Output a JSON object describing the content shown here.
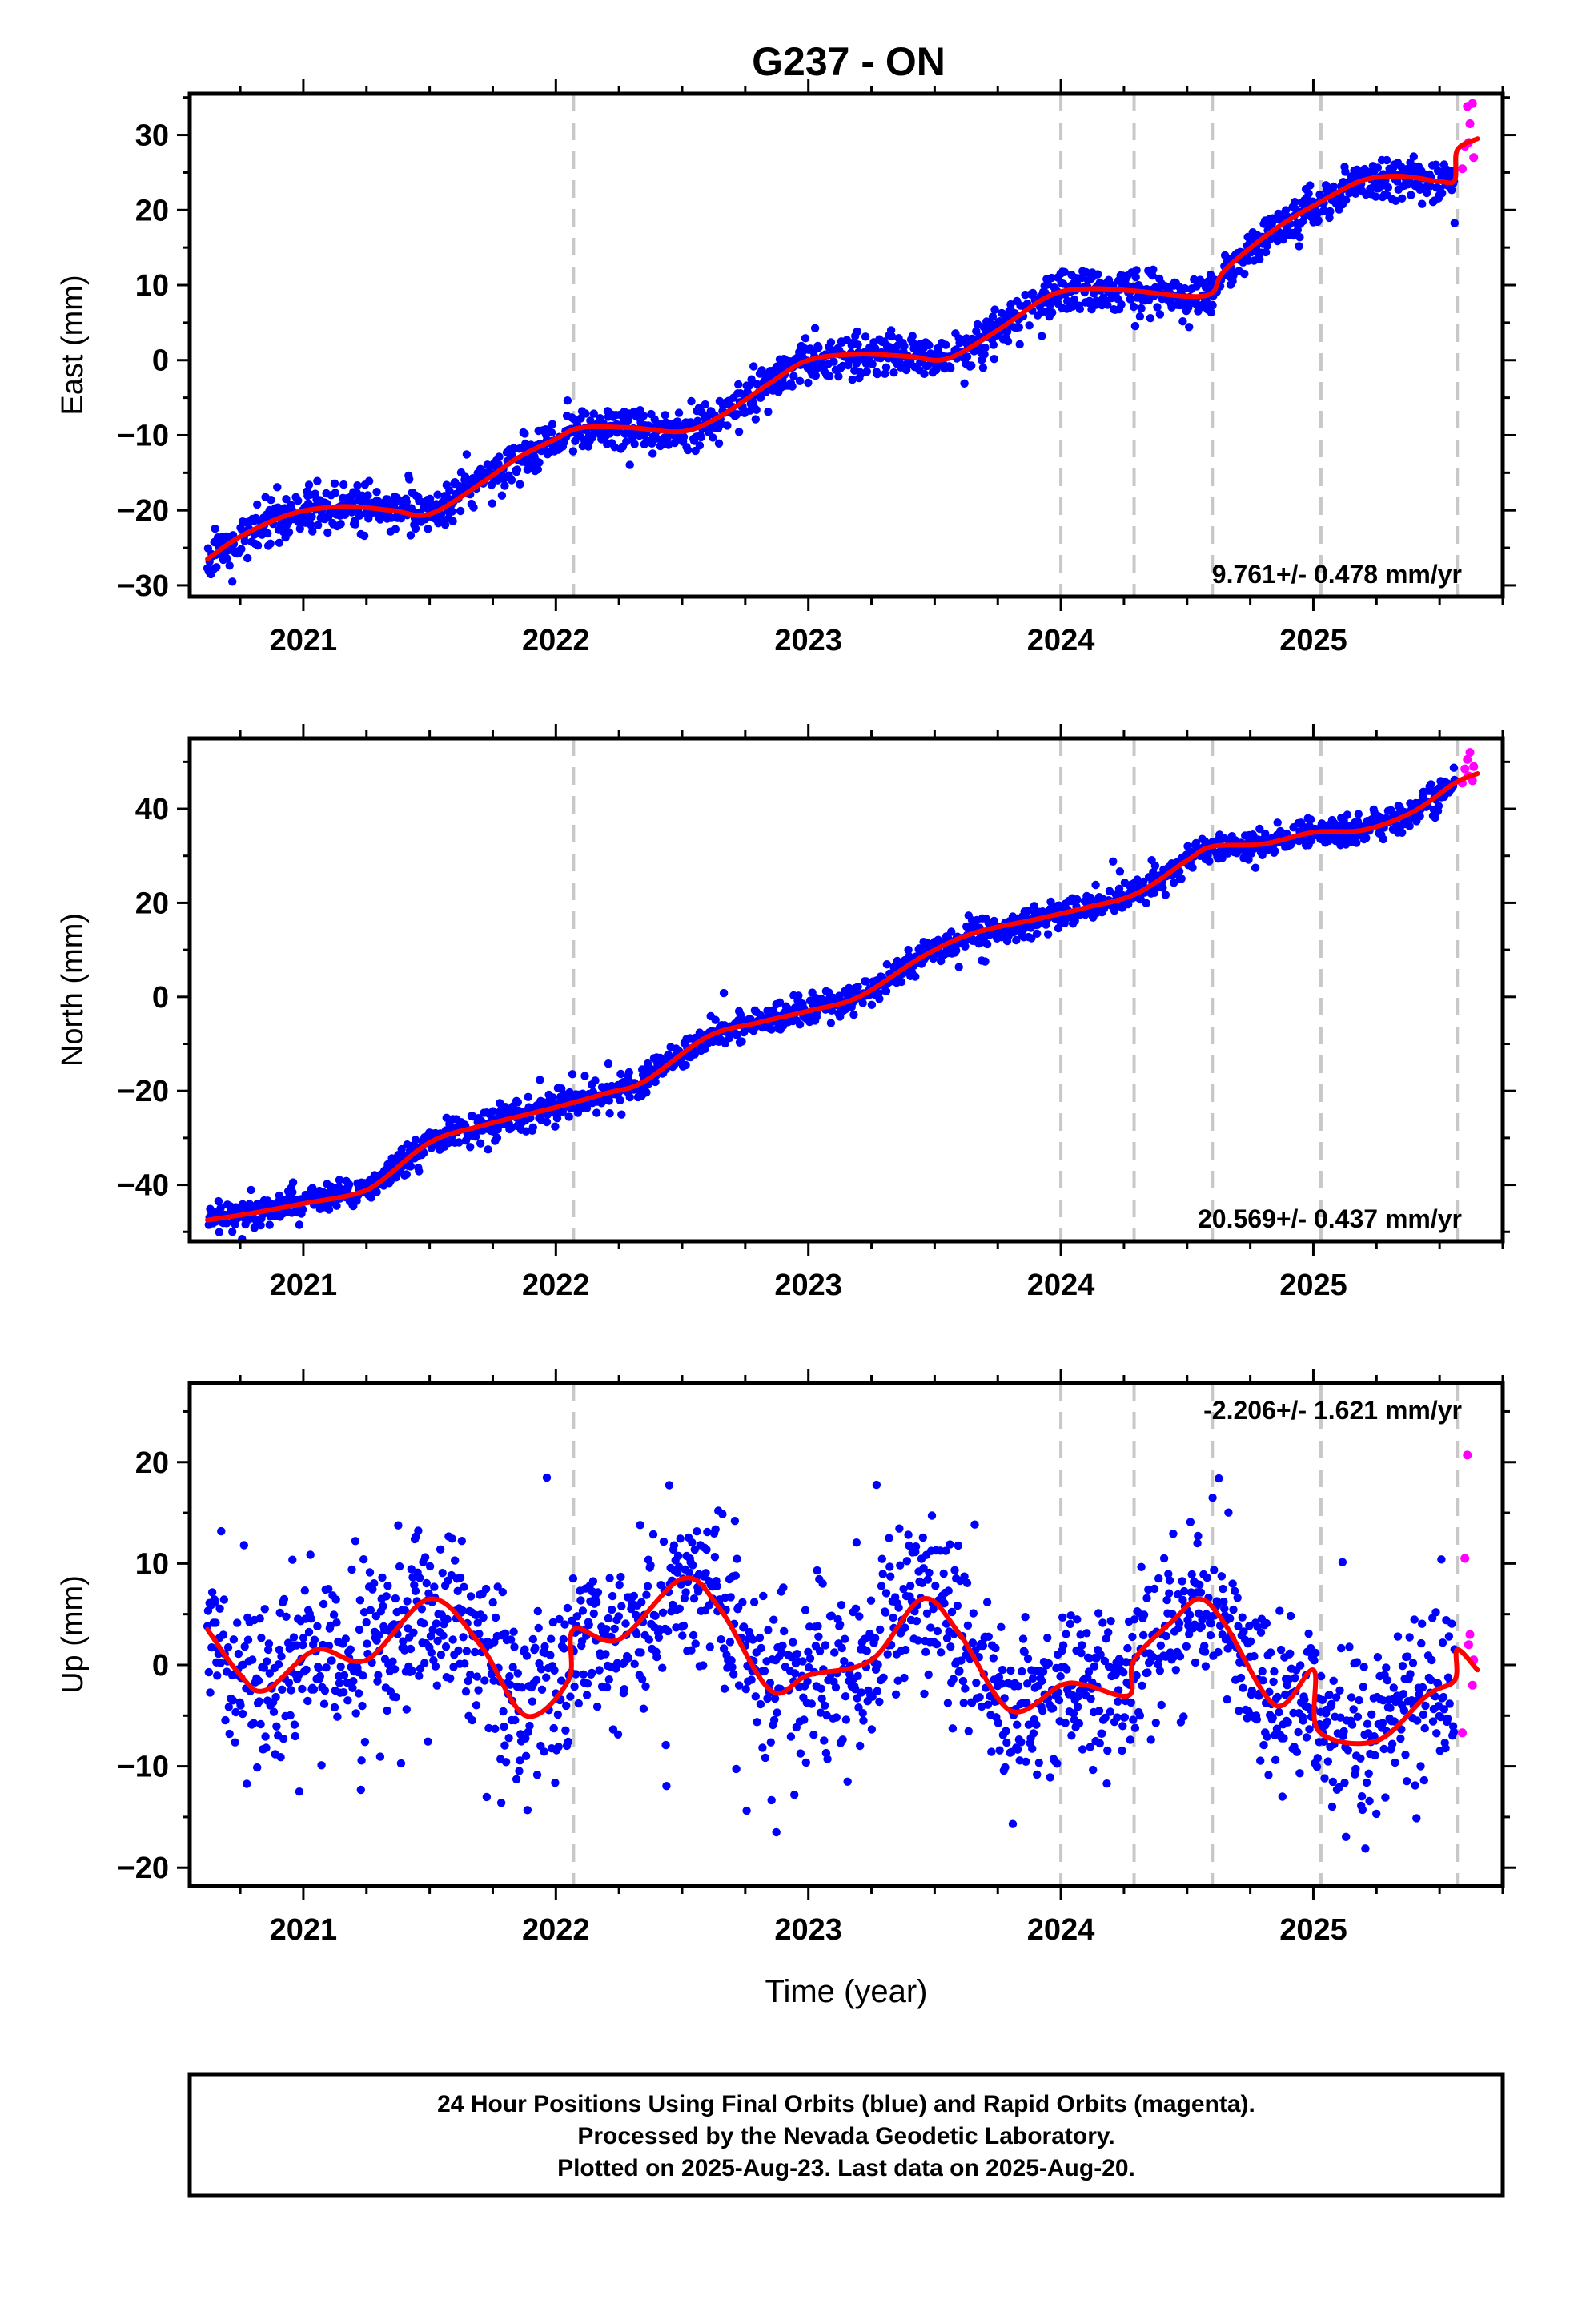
{
  "title": "G237 - ON",
  "chart_data": [
    {
      "type": "scatter",
      "ylabel": "East (mm)",
      "xlabel": "",
      "xlim": [
        2020.55,
        2025.75
      ],
      "ylim": [
        -31.5,
        35.5
      ],
      "x_ticks": [
        2021,
        2022,
        2023,
        2024,
        2025
      ],
      "y_ticks": [
        -30,
        -20,
        -10,
        0,
        10,
        20,
        30
      ],
      "grid": false,
      "rate_text": "9.761+/- 0.478 mm/yr",
      "rate_position": "bottom-right",
      "series": [
        {
          "role": "final_orbits",
          "color": "#0000ff",
          "seed": 11,
          "scatter_sd": 1.4,
          "trend_x": [
            2020.62,
            2020.75,
            2020.95,
            2021.15,
            2021.35,
            2021.5,
            2021.7,
            2021.85,
            2022.0,
            2022.1,
            2022.3,
            2022.5,
            2022.65,
            2022.85,
            2023.0,
            2023.2,
            2023.4,
            2023.55,
            2023.75,
            2023.95,
            2024.1,
            2024.3,
            2024.5,
            2024.6,
            2024.65,
            2024.85,
            2025.05,
            2025.2,
            2025.35,
            2025.5,
            2025.56
          ],
          "trend_y": [
            -26.5,
            -23.5,
            -20.5,
            -19.5,
            -20.0,
            -20.5,
            -16.5,
            -13.0,
            -10.5,
            -9.0,
            -9.0,
            -9.5,
            -7.5,
            -3.0,
            0.0,
            0.8,
            0.5,
            0.2,
            4.0,
            8.5,
            9.5,
            9.2,
            8.5,
            9.0,
            12.0,
            17.5,
            21.5,
            24.0,
            24.5,
            23.8,
            24.0
          ]
        },
        {
          "role": "rapid_orbits",
          "color": "#ff00ff",
          "x": [
            2025.59,
            2025.6,
            2025.61,
            2025.615,
            2025.62,
            2025.63,
            2025.635
          ],
          "y": [
            25.5,
            28.5,
            33.8,
            29.0,
            31.5,
            34.2,
            27.0
          ]
        },
        {
          "role": "model",
          "color": "#ff0000",
          "x": [
            2020.62,
            2020.75,
            2020.95,
            2021.15,
            2021.35,
            2021.5,
            2021.7,
            2021.85,
            2022.0,
            2022.1,
            2022.3,
            2022.5,
            2022.65,
            2022.85,
            2023.0,
            2023.2,
            2023.4,
            2023.55,
            2023.75,
            2023.95,
            2024.1,
            2024.3,
            2024.5,
            2024.6,
            2024.65,
            2024.85,
            2025.05,
            2025.2,
            2025.35,
            2025.5,
            2025.56,
            2025.57,
            2025.65
          ],
          "y": [
            -26.5,
            -23.5,
            -20.5,
            -19.5,
            -20.0,
            -20.5,
            -16.5,
            -13.0,
            -10.5,
            -9.0,
            -9.0,
            -9.5,
            -7.5,
            -3.0,
            0.0,
            0.8,
            0.5,
            0.2,
            4.0,
            8.5,
            9.5,
            9.2,
            8.5,
            9.0,
            12.0,
            17.5,
            21.5,
            24.0,
            24.5,
            23.8,
            24.0,
            28.0,
            29.5
          ]
        }
      ],
      "steps": [
        2022.07,
        2024.0,
        2024.29,
        2024.6,
        2025.03,
        2025.57
      ]
    },
    {
      "type": "scatter",
      "ylabel": "North (mm)",
      "xlabel": "",
      "xlim": [
        2020.55,
        2025.75
      ],
      "ylim": [
        -52,
        55
      ],
      "x_ticks": [
        2021,
        2022,
        2023,
        2024,
        2025
      ],
      "y_ticks": [
        -40,
        -20,
        0,
        20,
        40
      ],
      "grid": false,
      "rate_text": "20.569+/- 0.437 mm/yr",
      "rate_position": "bottom-right",
      "series": [
        {
          "role": "final_orbits",
          "color": "#0000ff",
          "seed": 23,
          "scatter_sd": 1.5,
          "trend_x": [
            2020.62,
            2020.8,
            2021.0,
            2021.2,
            2021.3,
            2021.5,
            2021.7,
            2022.0,
            2022.2,
            2022.35,
            2022.6,
            2022.8,
            2023.0,
            2023.2,
            2023.45,
            2023.65,
            2023.9,
            2024.1,
            2024.3,
            2024.5,
            2024.6,
            2024.8,
            2025.0,
            2025.2,
            2025.4,
            2025.56
          ],
          "trend_y": [
            -47.5,
            -46.0,
            -44.0,
            -42.0,
            -39.5,
            -31.0,
            -27.5,
            -23.5,
            -20.5,
            -18.0,
            -8.5,
            -5.5,
            -3.0,
            0.0,
            8.5,
            13.5,
            16.5,
            19.0,
            22.0,
            29.0,
            32.0,
            32.5,
            35.0,
            35.5,
            39.5,
            45.5
          ]
        },
        {
          "role": "rapid_orbits",
          "color": "#ff00ff",
          "x": [
            2025.59,
            2025.6,
            2025.61,
            2025.615,
            2025.62,
            2025.63,
            2025.635
          ],
          "y": [
            45.5,
            48.5,
            50.5,
            47.0,
            52.0,
            46.0,
            49.0
          ]
        },
        {
          "role": "model",
          "color": "#ff0000",
          "x": [
            2020.62,
            2020.8,
            2021.0,
            2021.2,
            2021.3,
            2021.5,
            2021.7,
            2022.0,
            2022.2,
            2022.35,
            2022.6,
            2022.8,
            2023.0,
            2023.2,
            2023.45,
            2023.65,
            2023.9,
            2024.1,
            2024.3,
            2024.5,
            2024.6,
            2024.8,
            2025.0,
            2025.2,
            2025.4,
            2025.56,
            2025.65
          ],
          "y": [
            -47.5,
            -46.0,
            -44.0,
            -42.0,
            -39.5,
            -31.0,
            -27.5,
            -23.5,
            -20.5,
            -18.0,
            -8.5,
            -5.5,
            -3.0,
            0.0,
            8.5,
            13.5,
            16.5,
            19.0,
            22.0,
            29.0,
            32.0,
            32.5,
            35.0,
            35.5,
            39.5,
            45.5,
            47.5
          ]
        }
      ],
      "steps": [
        2022.07,
        2024.0,
        2024.29,
        2024.6,
        2025.03,
        2025.57
      ]
    },
    {
      "type": "scatter",
      "ylabel": "Up (mm)",
      "xlabel": "Time (year)",
      "xlim": [
        2020.55,
        2025.75
      ],
      "ylim": [
        -21.8,
        27.8
      ],
      "x_ticks": [
        2021,
        2022,
        2023,
        2024,
        2025
      ],
      "y_ticks": [
        -20,
        -10,
        0,
        10,
        20
      ],
      "grid": false,
      "rate_text": "-2.206+/- 1.621 mm/yr",
      "rate_position": "top-right",
      "series": [
        {
          "role": "final_orbits",
          "color": "#0000ff",
          "seed": 37,
          "scatter_sd": 4.2,
          "trend_x": [
            2020.62,
            2020.75,
            2020.85,
            2021.05,
            2021.25,
            2021.5,
            2021.7,
            2021.88,
            2022.05,
            2022.07,
            2022.25,
            2022.5,
            2022.65,
            2022.85,
            2023.0,
            2023.25,
            2023.45,
            2023.6,
            2023.8,
            2024.0,
            2024.1,
            2024.27,
            2024.29,
            2024.45,
            2024.55,
            2024.65,
            2024.85,
            2025.0,
            2025.02,
            2025.25,
            2025.45,
            2025.56
          ],
          "trend_y": [
            3.5,
            -1.0,
            -2.5,
            1.5,
            0.5,
            6.5,
            2.0,
            -5.0,
            -1.5,
            3.5,
            2.5,
            8.5,
            5.5,
            -2.5,
            -1.0,
            0.5,
            6.5,
            3.0,
            -4.5,
            -2.0,
            -2.0,
            -3.0,
            0.5,
            4.5,
            6.5,
            4.0,
            -4.0,
            -0.5,
            -6.5,
            -7.5,
            -3.0,
            -1.5
          ]
        },
        {
          "role": "rapid_orbits",
          "color": "#ff00ff",
          "x": [
            2025.59,
            2025.6,
            2025.61,
            2025.615,
            2025.62,
            2025.63,
            2025.635
          ],
          "y": [
            -6.7,
            10.5,
            20.7,
            2.0,
            3.0,
            -2.0,
            0.5
          ]
        },
        {
          "role": "model",
          "color": "#ff0000",
          "x": [
            2020.62,
            2020.75,
            2020.85,
            2021.05,
            2021.25,
            2021.5,
            2021.7,
            2021.88,
            2022.05,
            2022.07,
            2022.25,
            2022.5,
            2022.65,
            2022.85,
            2023.0,
            2023.25,
            2023.45,
            2023.6,
            2023.8,
            2024.0,
            2024.1,
            2024.27,
            2024.29,
            2024.45,
            2024.55,
            2024.65,
            2024.85,
            2025.0,
            2025.02,
            2025.25,
            2025.45,
            2025.56,
            2025.57,
            2025.65
          ],
          "y": [
            3.5,
            -1.0,
            -2.5,
            1.5,
            0.5,
            6.5,
            2.0,
            -5.0,
            -1.5,
            3.5,
            2.5,
            8.5,
            5.5,
            -2.5,
            -1.0,
            0.5,
            6.5,
            3.0,
            -4.5,
            -2.0,
            -2.0,
            -3.0,
            0.5,
            4.5,
            6.5,
            4.0,
            -4.0,
            -0.5,
            -6.5,
            -7.5,
            -3.0,
            -1.5,
            1.5,
            -0.5
          ]
        }
      ],
      "steps": [
        2022.07,
        2024.0,
        2024.29,
        2024.6,
        2025.03,
        2025.57
      ]
    }
  ],
  "footer": {
    "line1": "24 Hour Positions Using Final Orbits (blue) and Rapid Orbits (magenta).",
    "line2": "Processed by the Nevada Geodetic Laboratory.",
    "line3": "Plotted on 2025-Aug-23. Last data on 2025-Aug-20."
  }
}
